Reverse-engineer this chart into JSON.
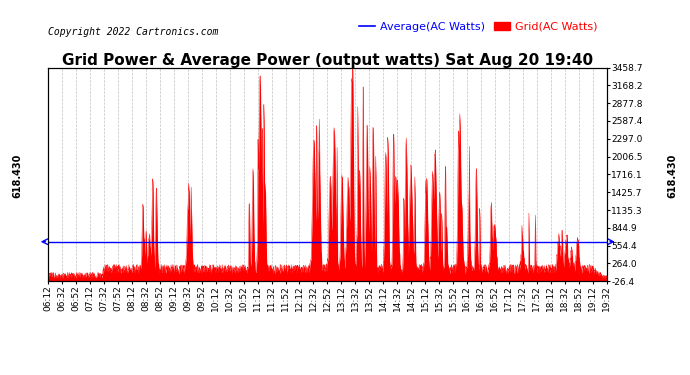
{
  "title": "Grid Power & Average Power (output watts) Sat Aug 20 19:40",
  "copyright": "Copyright 2022 Cartronics.com",
  "legend_avg": "Average(AC Watts)",
  "legend_grid": "Grid(AC Watts)",
  "avg_line_color": "#0000ff",
  "fill_color": "#ff0000",
  "avg_value": 618.43,
  "y_right_ticks": [
    3458.7,
    3168.2,
    2877.8,
    2587.4,
    2297.0,
    2006.5,
    1716.1,
    1425.7,
    1135.3,
    844.9,
    554.4,
    264.0,
    -26.4
  ],
  "ymin": -26.4,
  "ymax": 3458.7,
  "background_color": "#ffffff",
  "grid_line_color": "#bbbbbb",
  "title_fontsize": 11,
  "copyright_fontsize": 7,
  "legend_fontsize": 8,
  "tick_fontsize": 6.5,
  "x_start_min": 372,
  "x_end_min": 1173,
  "x_tick_step": 20
}
